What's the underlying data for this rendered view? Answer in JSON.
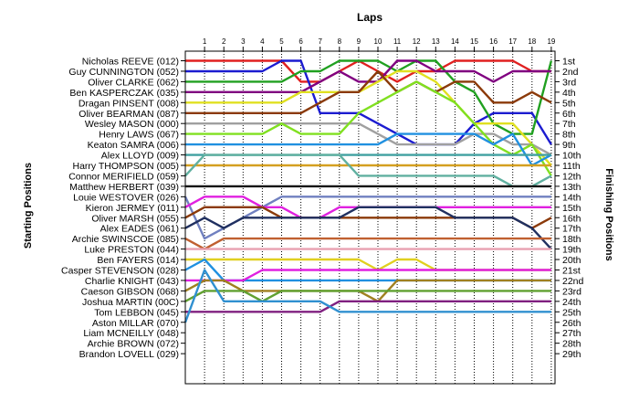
{
  "chart_data": {
    "type": "line",
    "title": "Laps",
    "xlabel": "Laps",
    "ylabel_left": "Starting Positions",
    "ylabel_right": "Finishing Positions",
    "laps": [
      1,
      2,
      3,
      4,
      5,
      6,
      7,
      8,
      9,
      10,
      11,
      12,
      13,
      14,
      15,
      16,
      17,
      18,
      19
    ],
    "positions": [
      "1st",
      "2nd",
      "3rd",
      "4th",
      "5th",
      "6th",
      "7th",
      "8th",
      "9th",
      "10th",
      "11th",
      "12th",
      "13th",
      "14th",
      "15th",
      "16th",
      "17th",
      "18th",
      "19th",
      "20th",
      "21st",
      "22nd",
      "23rd",
      "24th",
      "25th",
      "26th",
      "27th",
      "28th",
      "29th"
    ],
    "drivers": [
      "Nicholas REEVE (012)",
      "Guy CUNNINGTON (052)",
      "Oliver CLARKE (062)",
      "Ben KASPERCZAK (035)",
      "Dragan PINSENT (008)",
      "Oliver BEARMAN (087)",
      "Wesley MASON (000)",
      "Henry LAWS (067)",
      "Keaton SAMRA (006)",
      "Alex LLOYD (009)",
      "Harry THOMPSON (005)",
      "Connor MERIFIELD (059)",
      "Matthew HERBERT (039)",
      "Louie WESTOVER (026)",
      "Kieron JERMEY (011)",
      "Oliver MARSH (055)",
      "Alex EADES (061)",
      "Archie SWINSCOE (085)",
      "Luke PRESTON (044)",
      "Ben FAYERS (014)",
      "Casper STEVENSON (028)",
      "Charlie KNIGHT (043)",
      "Caeson GIBSON (068)",
      "Joshua MARTIN (00C)",
      "Tom LEBBON (045)",
      "Aston MILLAR (070)",
      "Liam MCNEILLY (048)",
      "Archie BROWN (072)",
      "Brandon LOVELL (029)"
    ],
    "series": [
      {
        "color": "#e02020",
        "positions": [
          1,
          1,
          1,
          1,
          1,
          3,
          3,
          2,
          1,
          2,
          3,
          2,
          2,
          1,
          1,
          1,
          1,
          2,
          2
        ]
      },
      {
        "color": "#1c1cd0",
        "positions": [
          2,
          2,
          2,
          2,
          1,
          1,
          6,
          6,
          6,
          7,
          8,
          9,
          9,
          9,
          7,
          6,
          6,
          6,
          9
        ]
      },
      {
        "color": "#20a020",
        "positions": [
          3,
          3,
          3,
          3,
          3,
          2,
          2,
          1,
          1,
          1,
          2,
          1,
          1,
          3,
          4,
          7,
          8,
          8,
          1
        ]
      },
      {
        "color": "#800080",
        "positions": [
          4,
          4,
          4,
          4,
          4,
          4,
          3,
          2,
          3,
          3,
          1,
          1,
          2,
          2,
          2,
          3,
          2,
          2,
          2
        ]
      },
      {
        "color": "#e0e020",
        "positions": [
          5,
          5,
          5,
          5,
          5,
          4,
          4,
          4,
          4,
          3,
          2,
          2,
          3,
          5,
          7,
          7,
          7,
          9,
          11
        ]
      },
      {
        "color": "#8b3a0a",
        "positions": [
          6,
          6,
          6,
          6,
          6,
          6,
          5,
          4,
          4,
          2,
          4,
          3,
          4,
          3,
          3,
          5,
          5,
          4,
          5
        ]
      },
      {
        "color": "#a0a0a0",
        "positions": [
          7,
          7,
          7,
          7,
          7,
          7,
          7,
          7,
          7,
          8,
          9,
          9,
          9,
          9,
          8,
          8,
          9,
          9,
          10
        ]
      },
      {
        "color": "#80e020",
        "positions": [
          8,
          8,
          8,
          8,
          7,
          8,
          8,
          8,
          6,
          5,
          4,
          3,
          4,
          5,
          7,
          9,
          10,
          9,
          12
        ]
      },
      {
        "color": "#2090e0",
        "positions": [
          9,
          9,
          9,
          9,
          9,
          9,
          9,
          9,
          9,
          9,
          8,
          8,
          8,
          8,
          8,
          9,
          8,
          11,
          10
        ]
      },
      {
        "color": "#40a0a0",
        "positions": [
          10,
          10,
          10,
          10,
          10,
          10,
          10,
          10,
          10,
          10,
          10,
          10,
          10,
          10,
          10,
          10,
          10,
          10,
          10
        ]
      },
      {
        "color": "#d4a020",
        "positions": [
          11,
          11,
          11,
          11,
          11,
          11,
          11,
          11,
          11,
          11,
          11,
          11,
          11,
          11,
          11,
          11,
          11,
          11,
          11
        ]
      },
      {
        "color": "#60b0a0",
        "positions": [
          10,
          10,
          10,
          10,
          10,
          10,
          10,
          10,
          12,
          12,
          12,
          12,
          12,
          12,
          12,
          12,
          13,
          13,
          12
        ]
      },
      {
        "color": "#101010",
        "positions": [
          13,
          13,
          13,
          13,
          13,
          13,
          13,
          13,
          13,
          13,
          13,
          13,
          13,
          13,
          13,
          13,
          13,
          13,
          13
        ]
      },
      {
        "color": "#7080c0",
        "positions": [
          18,
          17,
          16,
          15,
          14,
          14,
          14,
          14,
          14,
          14,
          14,
          14,
          14,
          14,
          14,
          14,
          14,
          14,
          14
        ]
      },
      {
        "color": "#e020e0",
        "positions": [
          14,
          14,
          14,
          15,
          15,
          16,
          16,
          15,
          15,
          15,
          15,
          15,
          15,
          15,
          15,
          15,
          15,
          15,
          15
        ]
      },
      {
        "color": "#8b3a0a",
        "positions": [
          15,
          15,
          15,
          15,
          16,
          16,
          16,
          16,
          16,
          16,
          16,
          16,
          16,
          16,
          16,
          16,
          16,
          17,
          16
        ]
      },
      {
        "color": "#203060",
        "positions": [
          16,
          17,
          16,
          16,
          16,
          16,
          16,
          16,
          15,
          15,
          15,
          15,
          15,
          16,
          16,
          16,
          16,
          17,
          19
        ]
      },
      {
        "color": "#c06030",
        "positions": [
          19,
          18,
          18,
          18,
          18,
          18,
          18,
          18,
          18,
          18,
          18,
          18,
          18,
          18,
          18,
          18,
          18,
          18,
          18
        ]
      },
      {
        "color": "#e8a0b0",
        "positions": [
          19,
          19,
          19,
          19,
          19,
          19,
          19,
          19,
          19,
          19,
          19,
          19,
          19,
          19,
          19,
          19,
          19,
          19,
          19
        ]
      },
      {
        "color": "#e0d020",
        "positions": [
          20,
          20,
          20,
          20,
          20,
          20,
          20,
          20,
          20,
          21,
          20,
          20,
          21,
          21,
          21,
          21,
          21,
          21,
          21
        ]
      },
      {
        "color": "#2090e0",
        "positions": [
          20,
          22,
          22,
          22,
          22,
          22,
          22,
          22,
          22,
          22,
          22,
          22,
          22,
          22,
          22,
          22,
          22,
          22,
          22
        ]
      },
      {
        "color": "#e020e0",
        "positions": [
          22,
          22,
          22,
          21,
          21,
          21,
          21,
          21,
          21,
          21,
          21,
          21,
          21,
          21,
          21,
          21,
          21,
          21,
          21
        ]
      },
      {
        "color": "#a08020",
        "positions": [
          22,
          22,
          23,
          23,
          23,
          23,
          23,
          23,
          23,
          24,
          22,
          22,
          22,
          22,
          22,
          22,
          22,
          22,
          22
        ]
      },
      {
        "color": "#60a030",
        "positions": [
          23,
          23,
          23,
          24,
          23,
          23,
          23,
          23,
          23,
          23,
          23,
          23,
          23,
          23,
          23,
          23,
          23,
          23,
          23
        ]
      },
      {
        "color": "#802080",
        "positions": [
          25,
          25,
          25,
          25,
          25,
          25,
          25,
          24,
          24,
          24,
          24,
          24,
          24,
          24,
          24,
          24,
          24,
          24,
          24
        ]
      },
      {
        "color": "#3090d0",
        "positions": [
          21,
          24,
          24,
          24,
          24,
          24,
          24,
          25,
          25,
          25,
          25,
          25,
          25,
          25,
          25,
          25,
          25,
          25,
          25
        ]
      }
    ]
  }
}
